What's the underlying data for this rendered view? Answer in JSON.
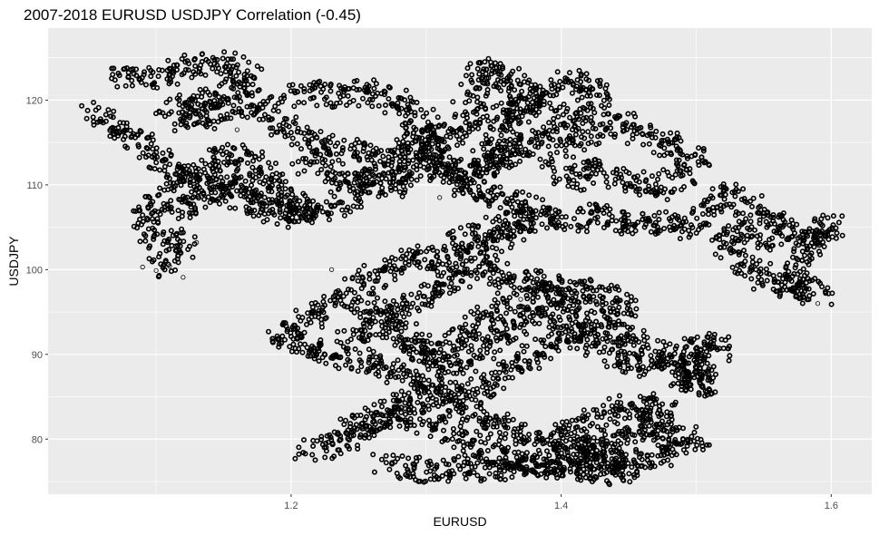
{
  "chart_data": {
    "type": "scatter",
    "title": "2007-2018 EURUSD USDJPY Correlation (-0.45)",
    "xlabel": "EURUSD",
    "ylabel": "USDJPY",
    "xlim": [
      1.02,
      1.63
    ],
    "ylim": [
      73.5,
      128.5
    ],
    "x_ticks": [
      1.2,
      1.4,
      1.6
    ],
    "x_tick_labels": [
      "1.2",
      "1.4",
      "1.6"
    ],
    "y_ticks": [
      80,
      90,
      100,
      110,
      120
    ],
    "y_tick_labels": [
      "80",
      "90",
      "100",
      "110",
      "120"
    ],
    "grid": true,
    "background_color": "#ebebeb",
    "grid_color": "#ffffff",
    "point_color": "#000000",
    "marker": "open-circle",
    "paths": [
      [
        [
          1.05,
          118.5
        ],
        [
          1.08,
          116.0
        ],
        [
          1.1,
          113.5
        ],
        [
          1.12,
          111.0
        ],
        [
          1.15,
          109.0
        ],
        [
          1.18,
          107.5
        ],
        [
          1.2,
          106.0
        ],
        [
          1.21,
          107.0
        ],
        [
          1.19,
          110.0
        ],
        [
          1.17,
          112.5
        ],
        [
          1.15,
          114.0
        ],
        [
          1.13,
          111.5
        ],
        [
          1.11,
          109.0
        ],
        [
          1.09,
          106.5
        ],
        [
          1.1,
          104.0
        ],
        [
          1.12,
          103.0
        ],
        [
          1.11,
          101.0
        ],
        [
          1.1,
          100.0
        ]
      ],
      [
        [
          1.07,
          123.0
        ],
        [
          1.1,
          122.5
        ],
        [
          1.12,
          124.0
        ],
        [
          1.15,
          124.5
        ],
        [
          1.17,
          123.0
        ],
        [
          1.16,
          121.0
        ],
        [
          1.13,
          120.0
        ],
        [
          1.11,
          119.0
        ],
        [
          1.12,
          117.5
        ],
        [
          1.15,
          118.5
        ],
        [
          1.17,
          120.0
        ],
        [
          1.19,
          118.0
        ],
        [
          1.2,
          116.0
        ],
        [
          1.23,
          114.5
        ],
        [
          1.26,
          113.5
        ],
        [
          1.28,
          112.0
        ],
        [
          1.26,
          110.5
        ],
        [
          1.23,
          111.5
        ],
        [
          1.21,
          112.5
        ]
      ],
      [
        [
          1.2,
          120.5
        ],
        [
          1.22,
          121.0
        ],
        [
          1.24,
          120.0
        ],
        [
          1.26,
          121.5
        ],
        [
          1.28,
          119.5
        ],
        [
          1.3,
          117.0
        ],
        [
          1.31,
          113.0
        ],
        [
          1.32,
          110.5
        ],
        [
          1.34,
          109.0
        ],
        [
          1.36,
          108.0
        ],
        [
          1.38,
          107.0
        ],
        [
          1.4,
          105.5
        ],
        [
          1.43,
          106.5
        ],
        [
          1.45,
          105.0
        ],
        [
          1.47,
          106.0
        ],
        [
          1.49,
          104.5
        ],
        [
          1.51,
          107.5
        ],
        [
          1.53,
          109.0
        ],
        [
          1.55,
          106.0
        ],
        [
          1.57,
          105.0
        ],
        [
          1.59,
          103.0
        ],
        [
          1.6,
          105.5
        ],
        [
          1.58,
          102.0
        ],
        [
          1.57,
          98.5
        ],
        [
          1.59,
          97.0
        ],
        [
          1.55,
          99.0
        ],
        [
          1.53,
          101.0
        ],
        [
          1.52,
          103.5
        ],
        [
          1.54,
          104.5
        ],
        [
          1.56,
          103.0
        ]
      ],
      [
        [
          1.29,
          117.0
        ],
        [
          1.3,
          115.5
        ],
        [
          1.28,
          114.0
        ],
        [
          1.3,
          112.5
        ],
        [
          1.28,
          110.0
        ],
        [
          1.25,
          109.0
        ],
        [
          1.23,
          107.5
        ],
        [
          1.21,
          106.5
        ],
        [
          1.19,
          108.0
        ],
        [
          1.17,
          110.0
        ],
        [
          1.15,
          111.0
        ],
        [
          1.13,
          108.0
        ],
        [
          1.12,
          106.0
        ]
      ],
      [
        [
          1.33,
          120.5
        ],
        [
          1.35,
          122.0
        ],
        [
          1.34,
          124.0
        ],
        [
          1.36,
          122.5
        ],
        [
          1.38,
          121.0
        ],
        [
          1.37,
          118.5
        ],
        [
          1.36,
          116.5
        ],
        [
          1.35,
          114.0
        ],
        [
          1.34,
          112.0
        ],
        [
          1.36,
          113.5
        ],
        [
          1.38,
          115.5
        ],
        [
          1.4,
          117.0
        ],
        [
          1.42,
          119.0
        ],
        [
          1.43,
          121.0
        ],
        [
          1.41,
          122.5
        ],
        [
          1.39,
          120.0
        ],
        [
          1.36,
          119.0
        ],
        [
          1.33,
          117.5
        ],
        [
          1.31,
          115.5
        ],
        [
          1.3,
          113.5
        ],
        [
          1.32,
          111.0
        ],
        [
          1.35,
          112.5
        ],
        [
          1.37,
          114.0
        ]
      ],
      [
        [
          1.4,
          114.0
        ],
        [
          1.42,
          116.0
        ],
        [
          1.44,
          117.5
        ],
        [
          1.46,
          116.0
        ],
        [
          1.48,
          114.5
        ],
        [
          1.5,
          113.5
        ],
        [
          1.49,
          111.0
        ],
        [
          1.47,
          109.5
        ],
        [
          1.45,
          110.5
        ],
        [
          1.43,
          112.0
        ],
        [
          1.41,
          110.5
        ],
        [
          1.39,
          112.0
        ]
      ],
      [
        [
          1.32,
          102.5
        ],
        [
          1.34,
          104.5
        ],
        [
          1.36,
          105.5
        ],
        [
          1.38,
          106.0
        ],
        [
          1.36,
          104.0
        ],
        [
          1.34,
          102.0
        ],
        [
          1.31,
          101.0
        ],
        [
          1.29,
          102.0
        ],
        [
          1.27,
          100.0
        ],
        [
          1.25,
          98.0
        ],
        [
          1.23,
          96.0
        ],
        [
          1.21,
          94.0
        ],
        [
          1.19,
          92.0
        ],
        [
          1.21,
          91.0
        ],
        [
          1.23,
          90.0
        ],
        [
          1.26,
          89.0
        ],
        [
          1.29,
          87.5
        ],
        [
          1.31,
          86.0
        ],
        [
          1.33,
          85.0
        ],
        [
          1.35,
          87.0
        ],
        [
          1.37,
          89.0
        ],
        [
          1.39,
          90.5
        ],
        [
          1.41,
          92.5
        ],
        [
          1.43,
          94.0
        ],
        [
          1.45,
          95.5
        ],
        [
          1.43,
          97.0
        ],
        [
          1.4,
          98.0
        ],
        [
          1.37,
          99.0
        ],
        [
          1.34,
          100.0
        ],
        [
          1.31,
          97.5
        ],
        [
          1.28,
          95.0
        ],
        [
          1.26,
          93.0
        ],
        [
          1.24,
          91.5
        ]
      ],
      [
        [
          1.4,
          93.5
        ],
        [
          1.42,
          91.5
        ],
        [
          1.44,
          90.0
        ],
        [
          1.46,
          88.5
        ],
        [
          1.48,
          89.5
        ],
        [
          1.5,
          90.5
        ],
        [
          1.52,
          91.5
        ],
        [
          1.51,
          89.5
        ],
        [
          1.49,
          87.0
        ],
        [
          1.51,
          86.0
        ],
        [
          1.49,
          88.0
        ],
        [
          1.47,
          90.0
        ],
        [
          1.45,
          92.0
        ],
        [
          1.43,
          93.0
        ]
      ],
      [
        [
          1.21,
          78.5
        ],
        [
          1.23,
          79.5
        ],
        [
          1.25,
          80.5
        ],
        [
          1.27,
          82.0
        ],
        [
          1.29,
          83.0
        ],
        [
          1.31,
          81.5
        ],
        [
          1.33,
          80.0
        ],
        [
          1.35,
          78.5
        ],
        [
          1.37,
          77.0
        ],
        [
          1.39,
          76.5
        ],
        [
          1.41,
          78.0
        ],
        [
          1.43,
          79.5
        ],
        [
          1.45,
          80.5
        ],
        [
          1.47,
          81.5
        ],
        [
          1.49,
          80.5
        ],
        [
          1.5,
          79.5
        ],
        [
          1.48,
          78.0
        ],
        [
          1.46,
          77.5
        ],
        [
          1.44,
          76.5
        ],
        [
          1.42,
          77.5
        ],
        [
          1.4,
          79.0
        ],
        [
          1.38,
          80.0
        ],
        [
          1.36,
          81.5
        ],
        [
          1.34,
          83.0
        ],
        [
          1.32,
          84.0
        ],
        [
          1.3,
          85.5
        ],
        [
          1.28,
          84.0
        ],
        [
          1.26,
          82.5
        ],
        [
          1.24,
          81.0
        ]
      ],
      [
        [
          1.27,
          77.0
        ],
        [
          1.29,
          76.5
        ],
        [
          1.31,
          76.0
        ],
        [
          1.33,
          77.0
        ],
        [
          1.35,
          76.0
        ],
        [
          1.37,
          76.5
        ],
        [
          1.39,
          77.5
        ],
        [
          1.41,
          76.0
        ],
        [
          1.43,
          75.8
        ],
        [
          1.45,
          76.5
        ],
        [
          1.44,
          78.0
        ],
        [
          1.42,
          79.0
        ],
        [
          1.4,
          80.5
        ],
        [
          1.42,
          82.0
        ],
        [
          1.44,
          83.5
        ],
        [
          1.46,
          84.5
        ],
        [
          1.48,
          83.0
        ],
        [
          1.46,
          82.0
        ]
      ],
      [
        [
          1.25,
          96.0
        ],
        [
          1.27,
          94.0
        ],
        [
          1.29,
          92.0
        ],
        [
          1.31,
          90.0
        ],
        [
          1.33,
          92.5
        ],
        [
          1.35,
          95.0
        ],
        [
          1.37,
          96.5
        ],
        [
          1.39,
          97.5
        ],
        [
          1.41,
          96.0
        ],
        [
          1.38,
          94.5
        ],
        [
          1.36,
          92.5
        ],
        [
          1.34,
          90.5
        ],
        [
          1.32,
          88.5
        ],
        [
          1.3,
          89.5
        ],
        [
          1.28,
          91.0
        ]
      ]
    ],
    "scattered_points": [
      [
        1.11,
        100.4
      ],
      [
        1.1,
        99.9
      ],
      [
        1.12,
        99.1
      ],
      [
        1.13,
        103.2
      ],
      [
        1.09,
        100.3
      ],
      [
        1.16,
        116.5
      ],
      [
        1.37,
        96.5
      ],
      [
        1.41,
        92.0
      ],
      [
        1.47,
        80.0
      ],
      [
        1.51,
        88.5
      ],
      [
        1.59,
        96.0
      ],
      [
        1.52,
        109.8
      ],
      [
        1.31,
        108.5
      ],
      [
        1.23,
        100.0
      ]
    ]
  }
}
